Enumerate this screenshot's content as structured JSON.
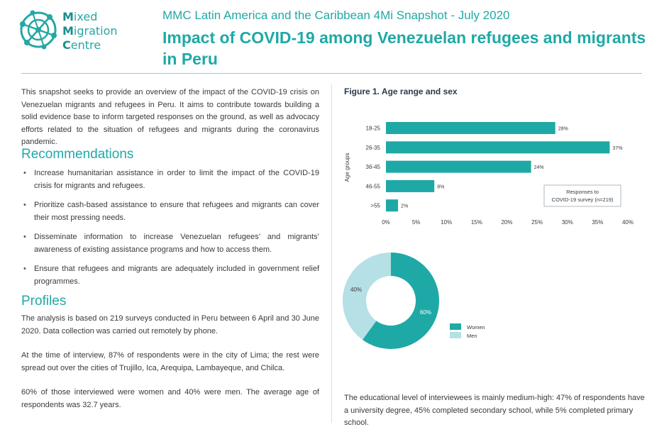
{
  "logo": {
    "line1_initial": "M",
    "line1_rest": "ixed",
    "line2_initial": "M",
    "line2_rest": "igration",
    "line3_initial": "C",
    "line3_rest": "entre"
  },
  "header": {
    "kicker": "MMC Latin America and the Caribbean 4Mi Snapshot - July 2020",
    "title": "Impact of COVID-19 among Venezuelan refugees and migrants in Peru"
  },
  "intro": "This snapshot seeks to provide an overview of the impact of the COVID-19 crisis on Venezuelan migrants and refugees in Peru. It aims to contribute towards building a solid evidence base to inform targeted responses on the ground, as well as advocacy efforts related to the situation of refugees and migrants during the coronavirus pandemic.",
  "recommendations": {
    "heading": "Recommendations",
    "items": [
      "Increase humanitarian assistance in order to limit the impact of the COVID-19 crisis for migrants and refugees.",
      "Prioritize cash-based assistance to ensure that refugees and migrants can cover their most pressing needs.",
      "Disseminate information to increase Venezuelan refugees’ and migrants’ awareness of existing assistance programs and how to access them.",
      "Ensure that refugees and migrants are adequately included in government relief programmes."
    ]
  },
  "profiles": {
    "heading": "Profiles",
    "paragraphs": [
      "The analysis is based on 219 surveys conducted in Peru between 6 April and 30 June 2020. Data collection was carried out remotely by phone.",
      "At the time of interview, 87% of respondents were in the city of Lima; the rest were spread out over the cities of Trujillo, Ica, Arequipa, Lambayeque, and Chilca.",
      "60% of those interviewed were women and 40% were men. The average age of respondents was 32.7 years."
    ]
  },
  "figure": {
    "title": "Figure 1. Age range and sex"
  },
  "bottom_text": "The educational level of interviewees is mainly medium-high: 47% of respondents have a university degree, 45% completed secondary school, while 5% completed primary school.",
  "colors": {
    "teal": "#1fa9a6",
    "light_teal": "#b4e0e6",
    "text": "#3a3a3a"
  },
  "chart_data": [
    {
      "type": "bar",
      "orientation": "horizontal",
      "categories": [
        "18-25",
        "26-35",
        "36-45",
        "46-55",
        ">55"
      ],
      "values": [
        28,
        37,
        24,
        8,
        2
      ],
      "value_labels": [
        "28%",
        "37%",
        "24%",
        "8%",
        "2%"
      ],
      "ylabel": "Age groups",
      "x_ticks": [
        "0%",
        "5%",
        "10%",
        "15%",
        "20%",
        "25%",
        "30%",
        "35%",
        "40%"
      ],
      "xlim": [
        0,
        40
      ],
      "annotation": [
        "Responses to",
        "COVID-19 survey (n=219)"
      ],
      "bar_color": "#1fa9a6"
    },
    {
      "type": "pie",
      "donut": true,
      "categories": [
        "Women",
        "Men"
      ],
      "values": [
        60,
        40
      ],
      "value_labels": [
        "60%",
        "40%"
      ],
      "colors": [
        "#1fa9a6",
        "#b4e0e6"
      ],
      "legend": "right"
    }
  ]
}
